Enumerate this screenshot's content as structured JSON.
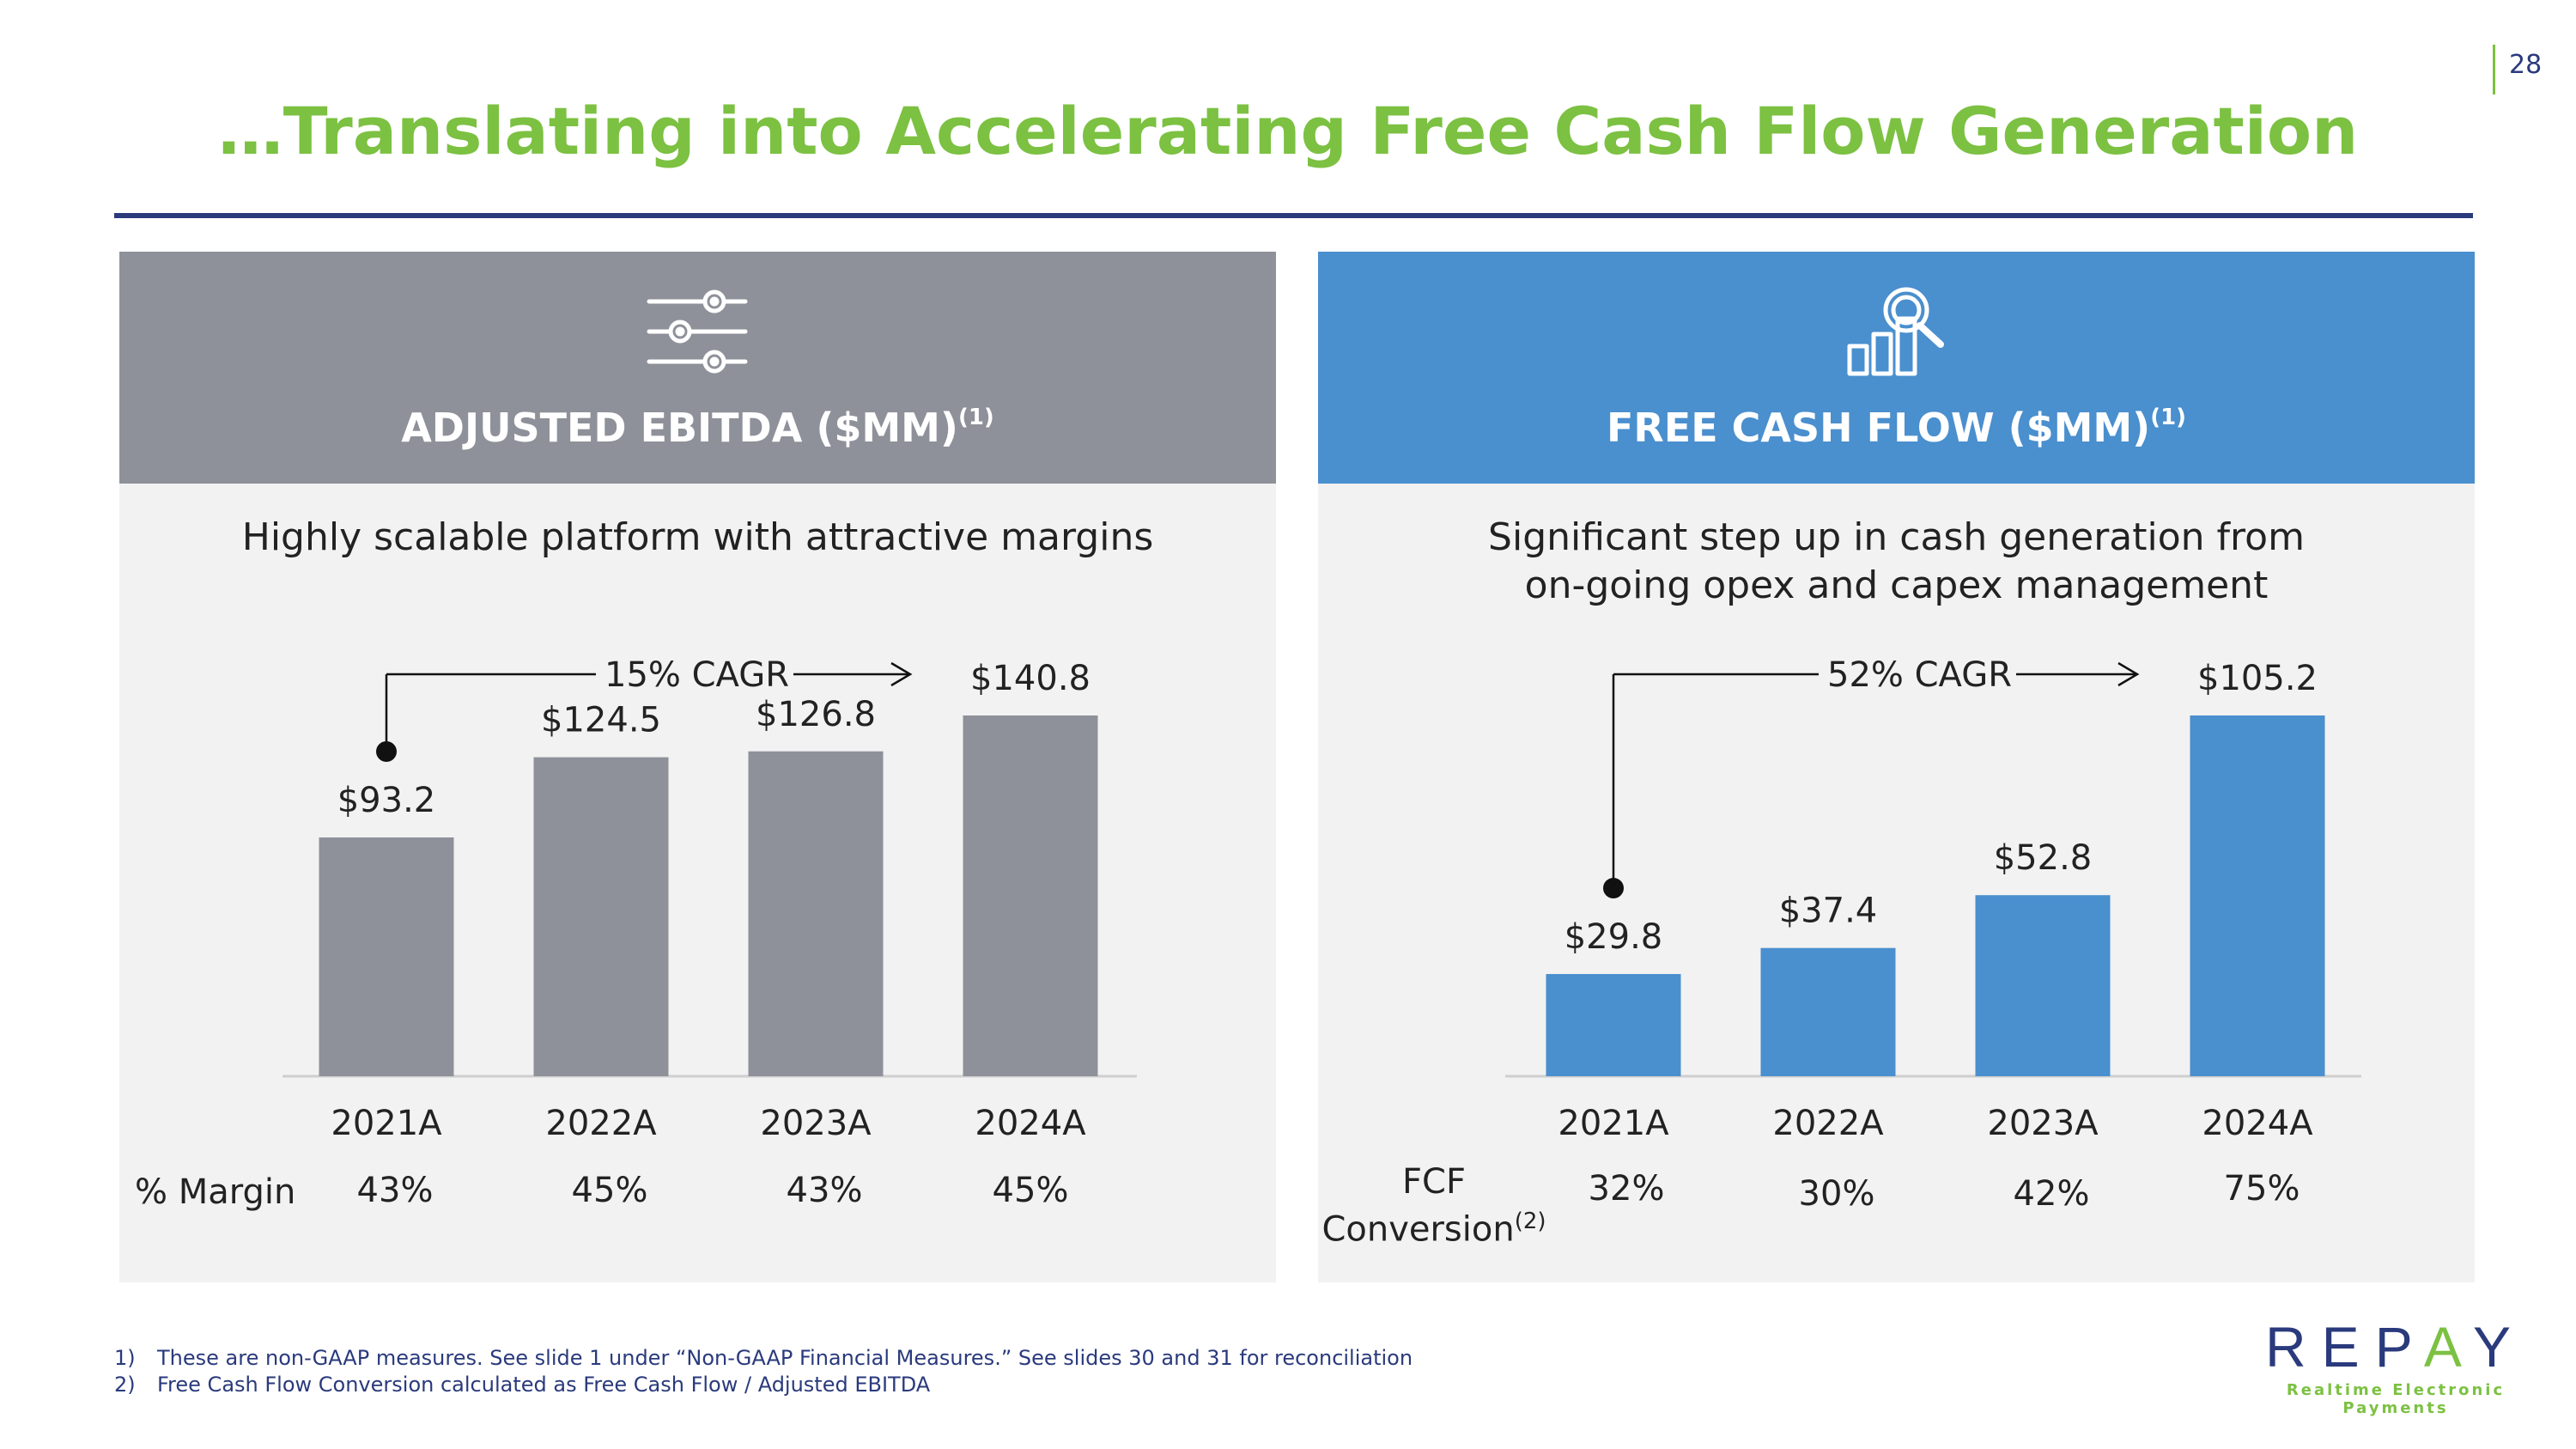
{
  "page_number": "28",
  "title": "…Translating into Accelerating Free Cash Flow Generation",
  "colors": {
    "green": "#7cc142",
    "navy": "#2a3a7c",
    "gray_bar": "#8e9199",
    "blue_bar": "#4a8fce",
    "panel_bg": "#f2f2f2"
  },
  "left_panel": {
    "header_icon": "sliders-icon",
    "header_title": "ADJUSTED EBITDA ($MM)",
    "header_sup": "(1)",
    "subtitle": "Highly scalable platform with attractive margins",
    "cagr_label": "15% CAGR",
    "row_label": "% Margin",
    "row_values": [
      "43%",
      "45%",
      "43%",
      "45%"
    ]
  },
  "right_panel": {
    "header_icon": "magnifier-bar-chart-icon",
    "header_title": "FREE CASH FLOW ($MM)",
    "header_sup": "(1)",
    "subtitle_line1": "Significant step up in cash generation from",
    "subtitle_line2": "on-going opex and capex management",
    "cagr_label": "52% CAGR",
    "row_label_line1": "FCF",
    "row_label_line2": "Conversion",
    "row_label_sup": "(2)",
    "row_values": [
      "32%",
      "30%",
      "42%",
      "75%"
    ]
  },
  "chart_data": [
    {
      "type": "bar",
      "title": "ADJUSTED EBITDA ($MM)",
      "categories": [
        "2021A",
        "2022A",
        "2023A",
        "2024A"
      ],
      "values": [
        93.2,
        124.5,
        126.8,
        140.8
      ],
      "value_labels": [
        "$93.2",
        "$124.5",
        "$126.8",
        "$140.8"
      ],
      "annotation": "15% CAGR",
      "ylim": [
        0,
        140.8
      ]
    },
    {
      "type": "bar",
      "title": "FREE CASH FLOW ($MM)",
      "categories": [
        "2021A",
        "2022A",
        "2023A",
        "2024A"
      ],
      "values": [
        29.8,
        37.4,
        52.8,
        105.2
      ],
      "value_labels": [
        "$29.8",
        "$37.4",
        "$52.8",
        "$105.2"
      ],
      "annotation": "52% CAGR",
      "ylim": [
        0,
        105.2
      ]
    }
  ],
  "footnotes": [
    {
      "num": "1)",
      "text": "These are non-GAAP measures. See slide 1 under “Non-GAAP Financial Measures.” See slides 30 and 31 for reconciliation"
    },
    {
      "num": "2)",
      "text": "Free Cash Flow Conversion calculated as Free Cash Flow / Adjusted EBITDA"
    }
  ],
  "logo": {
    "word_part1": "REP",
    "word_accent": "A",
    "word_part2": "Y",
    "tagline": "Realtime Electronic Payments"
  }
}
